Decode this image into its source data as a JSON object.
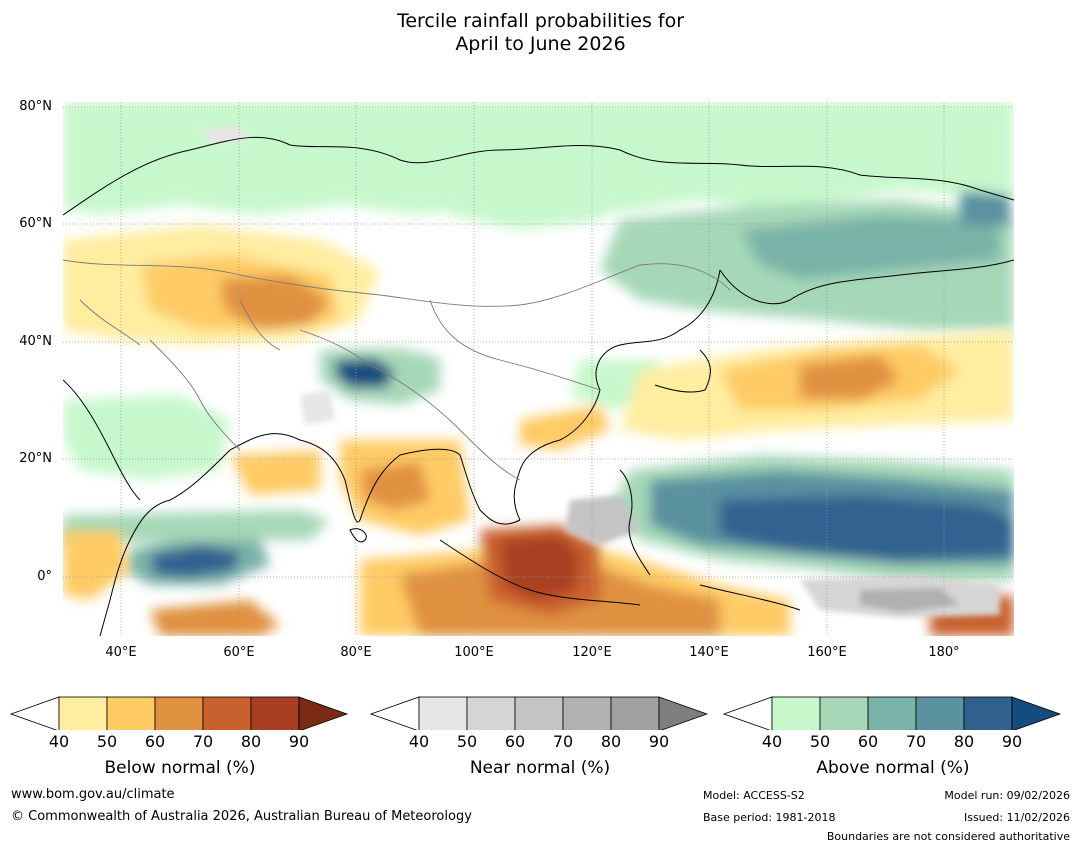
{
  "title": {
    "line1": "Tercile rainfall probabilities for",
    "line2": "April to June 2026"
  },
  "axes": {
    "lat_labels": [
      "80°N",
      "60°N",
      "40°N",
      "20°N",
      "0°"
    ],
    "lon_labels": [
      "40°E",
      "60°E",
      "80°E",
      "100°E",
      "120°E",
      "140°E",
      "160°E",
      "180°"
    ]
  },
  "colorbars": [
    {
      "label": "Below normal (%)",
      "ticks": [
        "40",
        "50",
        "60",
        "70",
        "80",
        "90"
      ],
      "colors": [
        "#ffeda0",
        "#fecb65",
        "#e0913f",
        "#c9612f",
        "#a83f22",
        "#7b2a15"
      ]
    },
    {
      "label": "Near normal (%)",
      "ticks": [
        "40",
        "50",
        "60",
        "70",
        "80",
        "90"
      ],
      "colors": [
        "#e6e6e6",
        "#d5d5d5",
        "#c4c4c4",
        "#b1b1b1",
        "#a0a0a0",
        "#7e7e7e"
      ]
    },
    {
      "label": "Above normal (%)",
      "ticks": [
        "40",
        "50",
        "60",
        "70",
        "80",
        "90"
      ],
      "colors": [
        "#c7f8cc",
        "#a6d8b8",
        "#7ab3a7",
        "#5a92a0",
        "#31628f",
        "#154c7e"
      ]
    }
  ],
  "footer": {
    "website": "www.bom.gov.au/climate",
    "copyright": "© Commonwealth of Australia 2026, Australian Bureau of Meteorology",
    "model": "Model: ACCESS-S2",
    "base_period": "Base period: 1981-2018",
    "model_run": "Model run: 09/02/2026",
    "issued": "Issued: 11/02/2026",
    "disclaimer": "Boundaries are not considered authoritative"
  }
}
